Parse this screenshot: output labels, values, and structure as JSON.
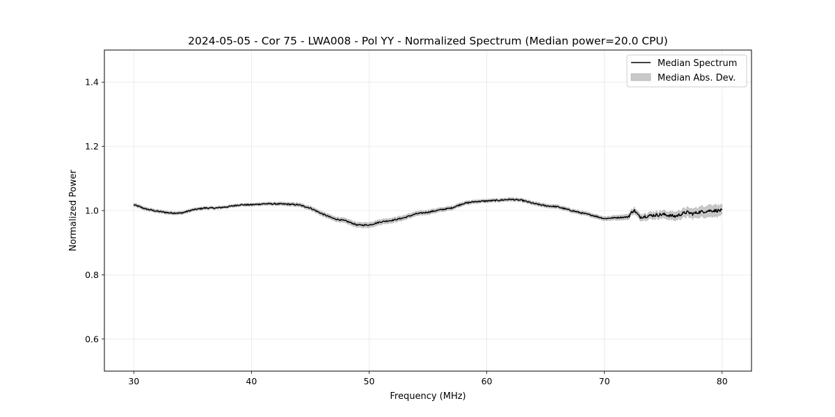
{
  "chart_data": {
    "type": "line",
    "title": "2024-05-05 - Cor 75 - LWA008 - Pol YY - Normalized Spectrum (Median power=20.0 CPU)",
    "xlabel": "Frequency (MHz)",
    "ylabel": "Normalized Power",
    "xlim": [
      27.5,
      82.5
    ],
    "ylim": [
      0.5,
      1.5
    ],
    "xticks": [
      30,
      40,
      50,
      60,
      70,
      80
    ],
    "yticks": [
      0.6,
      0.8,
      1.0,
      1.2,
      1.4
    ],
    "xtick_labels": [
      "30",
      "40",
      "50",
      "60",
      "70",
      "80"
    ],
    "ytick_labels": [
      "0.6",
      "0.8",
      "1.0",
      "1.2",
      "1.4"
    ],
    "grid": true,
    "legend": {
      "placement": "top-right",
      "entries": [
        "Median Spectrum",
        "Median Abs. Dev."
      ]
    },
    "series": [
      {
        "name": "Median Spectrum",
        "color": "#000000",
        "x": [
          30,
          30.5,
          31,
          32,
          33,
          34,
          35,
          36,
          37,
          38,
          39,
          40,
          41,
          42,
          43,
          44,
          45,
          46,
          47,
          48,
          49,
          50,
          51,
          52,
          53,
          54,
          55,
          56,
          57,
          58,
          59,
          60,
          61,
          62,
          63,
          64,
          65,
          66,
          67,
          68,
          69,
          70,
          71,
          72,
          72.5,
          73,
          74,
          75,
          76,
          77,
          77.5,
          78,
          79,
          80
        ],
        "values": [
          1.018,
          1.012,
          1.005,
          0.998,
          0.993,
          0.992,
          1.002,
          1.008,
          1.008,
          1.012,
          1.018,
          1.018,
          1.021,
          1.021,
          1.02,
          1.018,
          1.008,
          0.99,
          0.975,
          0.968,
          0.955,
          0.955,
          0.965,
          0.97,
          0.978,
          0.99,
          0.995,
          1.002,
          1.008,
          1.022,
          1.028,
          1.03,
          1.032,
          1.035,
          1.032,
          1.022,
          1.015,
          1.012,
          1.002,
          0.993,
          0.985,
          0.975,
          0.978,
          0.98,
          1.002,
          0.98,
          0.985,
          0.988,
          0.982,
          0.995,
          0.99,
          0.995,
          1.0,
          1.0
        ]
      },
      {
        "name": "Median Abs. Dev.",
        "color": "#c8c8c8",
        "x": [
          30,
          40,
          50,
          60,
          70,
          72,
          74,
          76,
          78,
          79,
          80
        ],
        "values": [
          0.005,
          0.004,
          0.008,
          0.005,
          0.006,
          0.008,
          0.01,
          0.012,
          0.015,
          0.018,
          0.015
        ]
      }
    ]
  }
}
